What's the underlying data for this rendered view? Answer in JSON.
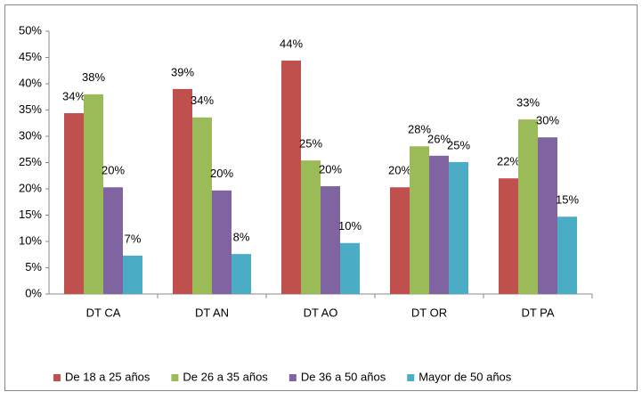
{
  "chart_data": {
    "type": "bar",
    "categories": [
      "DT CA",
      "DT AN",
      "DT AO",
      "DT OR",
      "DT PA"
    ],
    "series": [
      {
        "name": "De 18 a 25 años",
        "color": "#c0504d",
        "values": [
          34.4,
          39,
          44.4,
          20.3,
          22
        ],
        "value_labels": [
          "34%",
          "39%",
          "44%",
          "20%",
          "22%"
        ]
      },
      {
        "name": "De 26 a 35 años",
        "color": "#9bbb59",
        "values": [
          38,
          33.6,
          25.4,
          28.1,
          33.2
        ],
        "value_labels": [
          "38%",
          "34%",
          "25%",
          "28%",
          "33%"
        ]
      },
      {
        "name": "De 36 a 50 años",
        "color": "#8064a2",
        "values": [
          20.3,
          19.7,
          20.5,
          26.3,
          29.8
        ],
        "value_labels": [
          "20%",
          "20%",
          "20%",
          "26%",
          "30%"
        ]
      },
      {
        "name": "Mayor de 50 años",
        "color": "#4bacc6",
        "values": [
          7.3,
          7.6,
          9.7,
          25.1,
          14.7
        ],
        "value_labels": [
          "7%",
          "8%",
          "10%",
          "25%",
          "15%"
        ]
      }
    ],
    "ylim": [
      0,
      50
    ],
    "yticks": [
      {
        "value": 0,
        "label": "0%"
      },
      {
        "value": 5,
        "label": "5%"
      },
      {
        "value": 10,
        "label": "10%"
      },
      {
        "value": 15,
        "label": "15%"
      },
      {
        "value": 20,
        "label": "20%"
      },
      {
        "value": 25,
        "label": "25%"
      },
      {
        "value": 30,
        "label": "30%"
      },
      {
        "value": 35,
        "label": "35%"
      },
      {
        "value": 40,
        "label": "40%"
      },
      {
        "value": 45,
        "label": "45%"
      },
      {
        "value": 50,
        "label": "50%"
      }
    ],
    "grid": false,
    "legend": "bottom"
  }
}
